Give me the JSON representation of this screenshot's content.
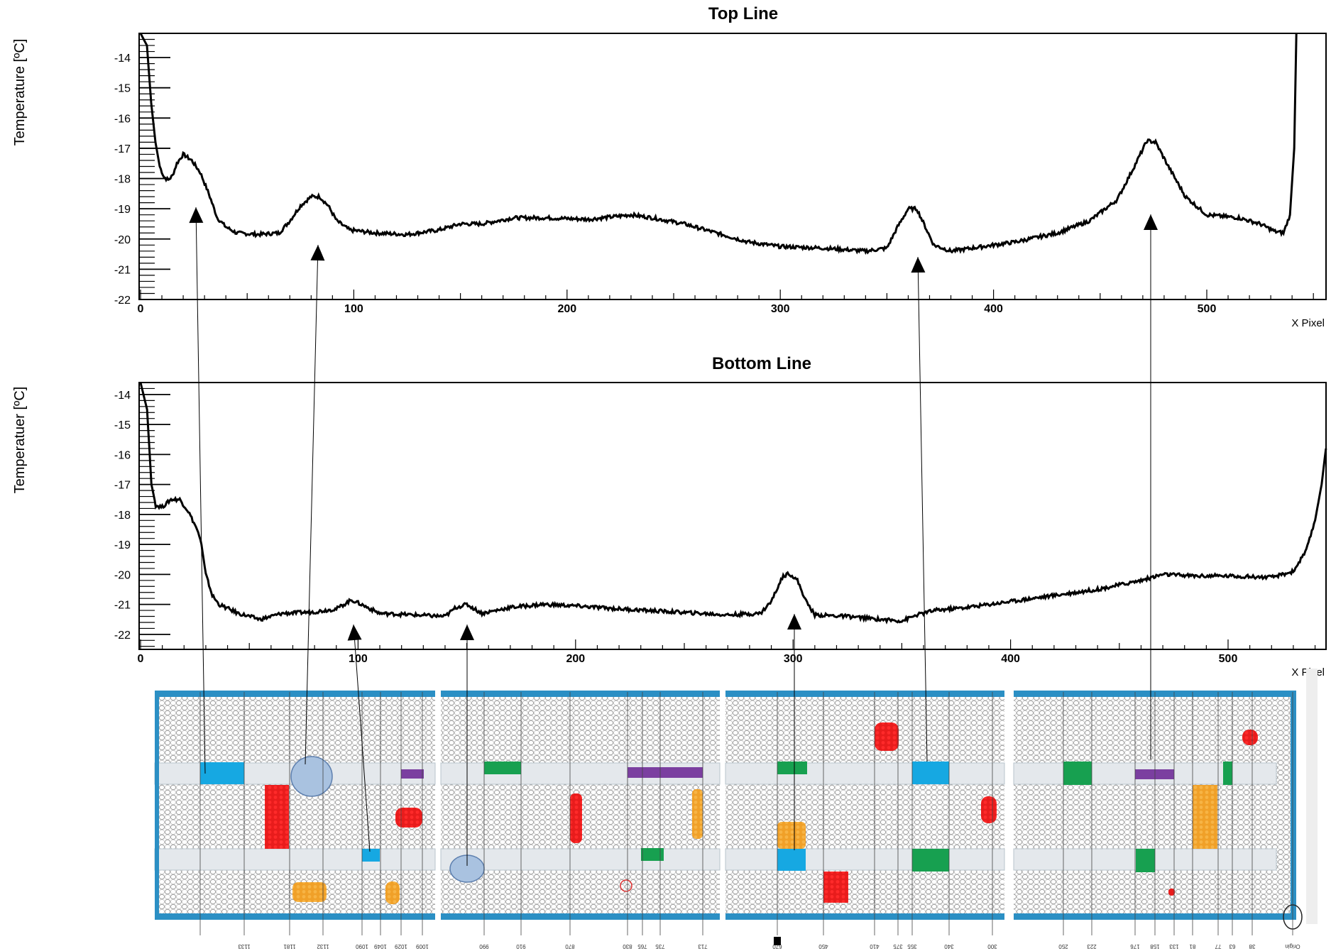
{
  "chart_data": [
    {
      "type": "line",
      "title": "Top Line",
      "xlabel": "X Pixel",
      "ylabel": "Temperature [ºC]",
      "xlim": [
        0,
        555
      ],
      "ylim": [
        -22,
        -13.2
      ],
      "x_ticks": [
        "0",
        "100",
        "200",
        "300",
        "400",
        "500"
      ],
      "y_ticks": [
        "-14",
        "-15",
        "-16",
        "-17",
        "-18",
        "-19",
        "-20",
        "-21",
        "-22"
      ],
      "series": [
        {
          "points": [
            [
              0,
              -13.2
            ],
            [
              3,
              -13.6
            ],
            [
              5,
              -15.5
            ],
            [
              7,
              -16.8
            ],
            [
              9,
              -17.6
            ],
            [
              11,
              -17.95
            ],
            [
              13,
              -18.05
            ],
            [
              15,
              -17.9
            ],
            [
              17,
              -17.5
            ],
            [
              20,
              -17.2
            ],
            [
              24,
              -17.4
            ],
            [
              28,
              -17.8
            ],
            [
              32,
              -18.5
            ],
            [
              36,
              -19.3
            ],
            [
              40,
              -19.6
            ],
            [
              45,
              -19.8
            ],
            [
              55,
              -19.85
            ],
            [
              65,
              -19.8
            ],
            [
              70,
              -19.4
            ],
            [
              75,
              -18.9
            ],
            [
              80,
              -18.6
            ],
            [
              84,
              -18.6
            ],
            [
              88,
              -18.9
            ],
            [
              92,
              -19.4
            ],
            [
              98,
              -19.7
            ],
            [
              110,
              -19.8
            ],
            [
              125,
              -19.85
            ],
            [
              140,
              -19.7
            ],
            [
              150,
              -19.5
            ],
            [
              160,
              -19.5
            ],
            [
              175,
              -19.3
            ],
            [
              190,
              -19.3
            ],
            [
              210,
              -19.35
            ],
            [
              230,
              -19.2
            ],
            [
              240,
              -19.3
            ],
            [
              255,
              -19.5
            ],
            [
              270,
              -19.8
            ],
            [
              285,
              -20.1
            ],
            [
              300,
              -20.25
            ],
            [
              320,
              -20.3
            ],
            [
              340,
              -20.4
            ],
            [
              350,
              -20.3
            ],
            [
              355,
              -19.6
            ],
            [
              360,
              -19.0
            ],
            [
              364,
              -19.0
            ],
            [
              368,
              -19.6
            ],
            [
              372,
              -20.2
            ],
            [
              380,
              -20.4
            ],
            [
              390,
              -20.3
            ],
            [
              410,
              -20.1
            ],
            [
              430,
              -19.8
            ],
            [
              445,
              -19.4
            ],
            [
              458,
              -18.7
            ],
            [
              466,
              -17.6
            ],
            [
              472,
              -16.75
            ],
            [
              476,
              -16.8
            ],
            [
              482,
              -17.6
            ],
            [
              490,
              -18.6
            ],
            [
              500,
              -19.2
            ],
            [
              515,
              -19.3
            ],
            [
              525,
              -19.5
            ],
            [
              532,
              -19.75
            ],
            [
              536,
              -19.8
            ],
            [
              539,
              -19.2
            ],
            [
              541,
              -17.0
            ],
            [
              542,
              -13.2
            ]
          ]
        }
      ]
    },
    {
      "type": "line",
      "title": "Bottom Line",
      "xlabel": "X Pixel",
      "ylabel": "Temperatuer [ºC]",
      "xlim": [
        0,
        545
      ],
      "ylim": [
        -22.5,
        -13.6
      ],
      "x_ticks": [
        "0",
        "100",
        "200",
        "300",
        "400",
        "500"
      ],
      "y_ticks": [
        "-14",
        "-15",
        "-16",
        "-17",
        "-18",
        "-19",
        "-20",
        "-21",
        "-22"
      ],
      "series": [
        {
          "points": [
            [
              0,
              -13.6
            ],
            [
              3,
              -14.5
            ],
            [
              5,
              -17.0
            ],
            [
              7,
              -17.7
            ],
            [
              10,
              -17.75
            ],
            [
              14,
              -17.5
            ],
            [
              18,
              -17.5
            ],
            [
              22,
              -17.9
            ],
            [
              26,
              -18.5
            ],
            [
              28,
              -19.0
            ],
            [
              30,
              -20.0
            ],
            [
              33,
              -20.7
            ],
            [
              36,
              -21.0
            ],
            [
              45,
              -21.3
            ],
            [
              55,
              -21.5
            ],
            [
              65,
              -21.3
            ],
            [
              80,
              -21.25
            ],
            [
              90,
              -21.15
            ],
            [
              97,
              -20.85
            ],
            [
              100,
              -20.95
            ],
            [
              110,
              -21.3
            ],
            [
              125,
              -21.35
            ],
            [
              140,
              -21.4
            ],
            [
              145,
              -21.1
            ],
            [
              150,
              -21.0
            ],
            [
              157,
              -21.3
            ],
            [
              170,
              -21.1
            ],
            [
              185,
              -21.0
            ],
            [
              200,
              -21.05
            ],
            [
              220,
              -21.15
            ],
            [
              245,
              -21.25
            ],
            [
              270,
              -21.35
            ],
            [
              285,
              -21.3
            ],
            [
              290,
              -20.9
            ],
            [
              295,
              -20.1
            ],
            [
              298,
              -19.95
            ],
            [
              302,
              -20.2
            ],
            [
              306,
              -20.9
            ],
            [
              310,
              -21.35
            ],
            [
              325,
              -21.4
            ],
            [
              340,
              -21.5
            ],
            [
              350,
              -21.55
            ],
            [
              357,
              -21.35
            ],
            [
              365,
              -21.2
            ],
            [
              380,
              -21.1
            ],
            [
              400,
              -20.9
            ],
            [
              420,
              -20.7
            ],
            [
              440,
              -20.5
            ],
            [
              460,
              -20.2
            ],
            [
              470,
              -20.0
            ],
            [
              485,
              -20.05
            ],
            [
              500,
              -20.05
            ],
            [
              520,
              -20.1
            ],
            [
              530,
              -19.9
            ],
            [
              536,
              -19.2
            ],
            [
              540,
              -18.2
            ],
            [
              543,
              -17.0
            ],
            [
              545,
              -15.8
            ]
          ]
        }
      ]
    }
  ],
  "detector_bottom_labels": [
    "1133",
    "1181",
    "1132",
    "1090",
    "1049",
    "1029",
    "1009",
    "990",
    "910",
    "870",
    "830",
    "765",
    "735",
    "713",
    "670",
    "450",
    "410",
    "375",
    "355",
    "340",
    "300",
    "250",
    "223",
    "176",
    "158",
    "133",
    "81",
    "77",
    "63",
    "38",
    "Origin"
  ]
}
